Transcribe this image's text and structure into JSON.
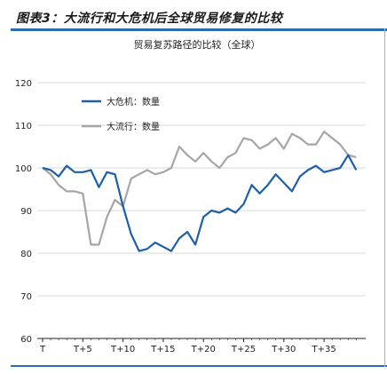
{
  "header": {
    "title": "图表3：大流行和大危机后全球贸易修复的比较"
  },
  "chart_data": {
    "type": "line",
    "title": "贸易复苏路径的比较（全球）",
    "xlabel": "",
    "ylabel": "",
    "ylim": [
      60,
      120
    ],
    "yticks": [
      60,
      70,
      80,
      90,
      100,
      110,
      120
    ],
    "x": [
      0,
      1,
      2,
      3,
      4,
      5,
      6,
      7,
      8,
      9,
      10,
      11,
      12,
      13,
      14,
      15,
      16,
      17,
      18,
      19,
      20,
      21,
      22,
      23,
      24,
      25,
      26,
      27,
      28,
      29,
      30,
      31,
      32,
      33,
      34,
      35,
      36,
      37,
      38,
      39
    ],
    "xticks": [
      {
        "x": 0,
        "label": "T"
      },
      {
        "x": 5,
        "label": "T+5"
      },
      {
        "x": 10,
        "label": "T+10"
      },
      {
        "x": 15,
        "label": "T+15"
      },
      {
        "x": 20,
        "label": "T+20"
      },
      {
        "x": 25,
        "label": "T+25"
      },
      {
        "x": 30,
        "label": "T+30"
      },
      {
        "x": 35,
        "label": "T+35"
      }
    ],
    "grid": "horizontal",
    "legend_position": "top-left",
    "series": [
      {
        "name": "大危机：数量",
        "color": "#1f5fa8",
        "values": [
          100,
          99.5,
          98.0,
          100.5,
          99.0,
          99.0,
          99.5,
          95.5,
          99.0,
          98.5,
          91.0,
          84.5,
          80.5,
          81.0,
          82.5,
          81.5,
          80.5,
          83.5,
          85.0,
          82.0,
          88.5,
          90.0,
          89.5,
          90.5,
          89.5,
          91.5,
          96.0,
          94.0,
          96.0,
          98.5,
          96.5,
          94.5,
          98.0,
          99.5,
          100.5,
          99.0,
          99.5,
          100.0,
          103.0,
          99.5
        ]
      },
      {
        "name": "大流行：数量",
        "color": "#a6a6a6",
        "values": [
          100,
          98.5,
          96.0,
          94.5,
          94.5,
          94.0,
          82.0,
          82.0,
          88.5,
          92.5,
          91.0,
          97.5,
          98.5,
          99.5,
          98.5,
          99.0,
          100.0,
          105.0,
          103.0,
          101.5,
          103.5,
          101.5,
          100.0,
          102.5,
          103.5,
          107.0,
          106.5,
          104.5,
          105.5,
          107.0,
          104.5,
          108.0,
          107.0,
          105.5,
          105.5,
          108.5,
          107.0,
          105.5,
          103.0,
          102.5
        ]
      }
    ]
  }
}
